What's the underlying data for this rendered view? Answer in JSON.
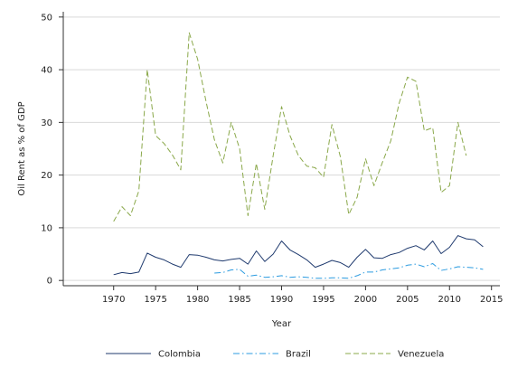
{
  "chart_data": {
    "type": "line",
    "title": "",
    "xlabel": "Year",
    "ylabel": "Oil Rent as % of GDP",
    "xlim": [
      1964,
      2016
    ],
    "ylim": [
      -1,
      51
    ],
    "x_ticks": [
      1970,
      1975,
      1980,
      1985,
      1990,
      1995,
      2000,
      2005,
      2010,
      2015
    ],
    "y_ticks": [
      0,
      10,
      20,
      30,
      40,
      50
    ],
    "grid": "horizontal",
    "legend_position": "bottom",
    "series": [
      {
        "name": "Colombia",
        "color": "#1f3a6e",
        "dash": "solid",
        "x": [
          1970,
          1971,
          1972,
          1973,
          1974,
          1975,
          1976,
          1977,
          1978,
          1979,
          1980,
          1981,
          1982,
          1983,
          1984,
          1985,
          1986,
          1987,
          1988,
          1989,
          1990,
          1991,
          1992,
          1993,
          1994,
          1995,
          1996,
          1997,
          1998,
          1999,
          2000,
          2001,
          2002,
          2003,
          2004,
          2005,
          2006,
          2007,
          2008,
          2009,
          2010,
          2011,
          2012,
          2013,
          2014
        ],
        "y": [
          1.1,
          1.5,
          1.3,
          1.6,
          5.2,
          4.4,
          3.9,
          3.1,
          2.5,
          4.9,
          4.8,
          4.4,
          3.9,
          3.7,
          4.0,
          4.2,
          3.1,
          5.6,
          3.6,
          5.0,
          7.5,
          5.8,
          4.9,
          3.9,
          2.5,
          3.1,
          3.8,
          3.4,
          2.5,
          4.4,
          5.9,
          4.3,
          4.2,
          4.9,
          5.3,
          6.1,
          6.6,
          5.8,
          7.5,
          5.1,
          6.3,
          8.5,
          7.9,
          7.7,
          6.4
        ]
      },
      {
        "name": "Brazil",
        "color": "#2b9be0",
        "dash": "dashdot",
        "x": [
          1982,
          1983,
          1984,
          1985,
          1986,
          1987,
          1988,
          1989,
          1990,
          1991,
          1992,
          1993,
          1994,
          1995,
          1996,
          1997,
          1998,
          1999,
          2000,
          2001,
          2002,
          2003,
          2004,
          2005,
          2006,
          2007,
          2008,
          2009,
          2010,
          2011,
          2012,
          2013,
          2014
        ],
        "y": [
          1.4,
          1.5,
          2.0,
          2.1,
          0.8,
          1.0,
          0.6,
          0.7,
          0.9,
          0.6,
          0.7,
          0.6,
          0.4,
          0.4,
          0.5,
          0.5,
          0.4,
          0.9,
          1.6,
          1.6,
          2.0,
          2.2,
          2.4,
          2.9,
          3.1,
          2.6,
          3.2,
          1.9,
          2.2,
          2.6,
          2.5,
          2.4,
          2.1
        ]
      },
      {
        "name": "Venezuela",
        "color": "#8aa84a",
        "dash": "dashed",
        "x": [
          1970,
          1971,
          1972,
          1973,
          1974,
          1975,
          1976,
          1977,
          1978,
          1979,
          1980,
          1981,
          1982,
          1983,
          1984,
          1985,
          1986,
          1987,
          1988,
          1989,
          1990,
          1991,
          1992,
          1993,
          1994,
          1995,
          1996,
          1997,
          1998,
          1999,
          2000,
          2001,
          2002,
          2003,
          2004,
          2005,
          2006,
          2007,
          2008,
          2009,
          2010,
          2011,
          2012
        ],
        "y": [
          11.2,
          14.0,
          12.3,
          17.0,
          40.0,
          27.5,
          26.0,
          23.8,
          21.0,
          47.0,
          42.0,
          34.0,
          26.7,
          22.3,
          30.0,
          25.0,
          12.3,
          22.2,
          13.5,
          23.7,
          33.0,
          27.5,
          23.7,
          21.7,
          21.4,
          19.6,
          29.6,
          23.5,
          12.5,
          15.8,
          23.1,
          18.0,
          22.4,
          26.5,
          33.6,
          38.6,
          37.8,
          28.4,
          29.0,
          16.7,
          18.0,
          30.0,
          23.7
        ]
      }
    ]
  }
}
